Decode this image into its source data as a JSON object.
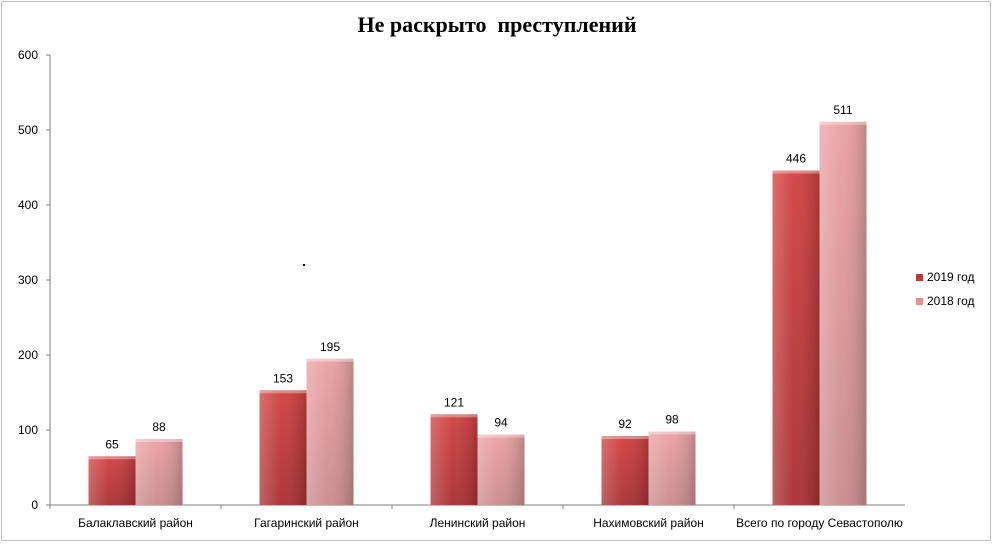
{
  "chart_data": {
    "type": "bar",
    "title": "Не раскрыто  преступлений",
    "categories": [
      "Балаклавский район",
      "Гагаринский район",
      "Ленинский район",
      "Нахимовский район",
      "Всего по городу Севастополю"
    ],
    "series": [
      {
        "name": "2019 год",
        "values": [
          65,
          153,
          121,
          92,
          446
        ],
        "color": "#c0383a"
      },
      {
        "name": "2018 год",
        "values": [
          88,
          195,
          94,
          98,
          511
        ],
        "color": "#e58f92"
      }
    ],
    "ylim": [
      0,
      600
    ],
    "yticks": [
      0,
      100,
      200,
      300,
      400,
      500,
      600
    ],
    "grid": false,
    "legend": "right"
  }
}
